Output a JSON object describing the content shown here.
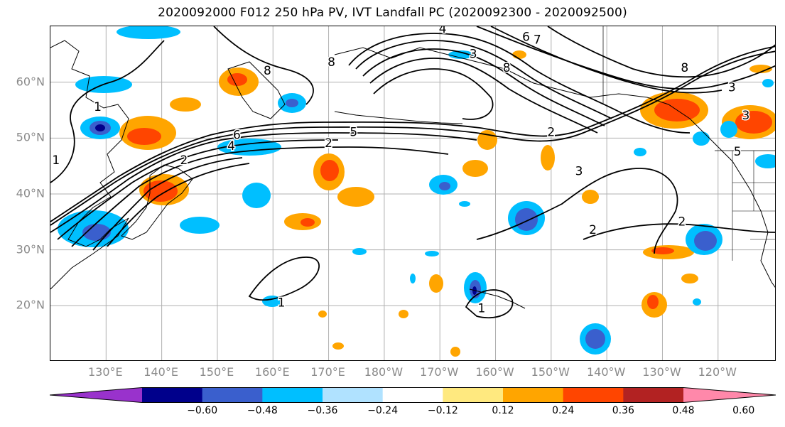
{
  "title": "2020092000 F012 250 hPa PV, IVT Landfall PC (2020092300 - 2020092500)",
  "map": {
    "lat_labels": [
      {
        "text": "60°N",
        "lat": 60
      },
      {
        "text": "50°N",
        "lat": 50
      },
      {
        "text": "40°N",
        "lat": 40
      },
      {
        "text": "30°N",
        "lat": 30
      },
      {
        "text": "20°N",
        "lat": 20
      }
    ],
    "lon_labels": [
      {
        "text": "130°E",
        "lon": 130
      },
      {
        "text": "140°E",
        "lon": 140
      },
      {
        "text": "150°E",
        "lon": 150
      },
      {
        "text": "160°E",
        "lon": 160
      },
      {
        "text": "170°E",
        "lon": 170
      },
      {
        "text": "180°W",
        "lon": 180
      },
      {
        "text": "170°W",
        "lon": 190
      },
      {
        "text": "160°W",
        "lon": 200
      },
      {
        "text": "150°W",
        "lon": 210
      },
      {
        "text": "140°W",
        "lon": 220
      },
      {
        "text": "130°W",
        "lon": 230
      },
      {
        "text": "120°W",
        "lon": 240
      }
    ],
    "extent": {
      "lon_min": 120,
      "lon_max": 250.5,
      "lat_min": 10,
      "lat_max": 70
    },
    "contour_labels": [
      {
        "text": "1",
        "lon": 128.5,
        "lat": 55.5
      },
      {
        "text": "1",
        "lon": 121,
        "lat": 46
      },
      {
        "text": "2",
        "lon": 144,
        "lat": 46
      },
      {
        "text": "4",
        "lon": 152.5,
        "lat": 48.5
      },
      {
        "text": "6",
        "lon": 153.5,
        "lat": 50.5
      },
      {
        "text": "8",
        "lon": 159,
        "lat": 62
      },
      {
        "text": "8",
        "lon": 170.5,
        "lat": 63.5
      },
      {
        "text": "2",
        "lon": 170,
        "lat": 49
      },
      {
        "text": "5",
        "lon": 174.5,
        "lat": 51
      },
      {
        "text": "4",
        "lon": 190.5,
        "lat": 69.5
      },
      {
        "text": "8",
        "lon": 202,
        "lat": 62.5
      },
      {
        "text": "6",
        "lon": 205.5,
        "lat": 68
      },
      {
        "text": "7",
        "lon": 207.5,
        "lat": 67.5
      },
      {
        "text": "3",
        "lon": 196,
        "lat": 65
      },
      {
        "text": "2",
        "lon": 210,
        "lat": 51
      },
      {
        "text": "3",
        "lon": 215,
        "lat": 44
      },
      {
        "text": "2",
        "lon": 217.5,
        "lat": 33.5
      },
      {
        "text": "2",
        "lon": 233.5,
        "lat": 35
      },
      {
        "text": "8",
        "lon": 234,
        "lat": 62.5
      },
      {
        "text": "3",
        "lon": 242.5,
        "lat": 59
      },
      {
        "text": "3",
        "lon": 245,
        "lat": 54
      },
      {
        "text": "5",
        "lon": 243.5,
        "lat": 47.5
      },
      {
        "text": "1",
        "lon": 161.5,
        "lat": 20.5
      },
      {
        "text": "1",
        "lon": 197.5,
        "lat": 19.5
      }
    ]
  },
  "colorbar": {
    "extend": "both",
    "levels": [
      -0.72,
      -0.6,
      -0.48,
      -0.36,
      -0.24,
      -0.12,
      0.12,
      0.24,
      0.36,
      0.48,
      0.6,
      0.72
    ],
    "colors": [
      "#9932cc",
      "#00008b",
      "#3a5fcd",
      "#00bfff",
      "#b0e2ff",
      "#ffffff",
      "#ffe97f",
      "#ffa500",
      "#ff4500",
      "#b22222",
      "#ff88aa"
    ],
    "ticks": [
      "−0.60",
      "−0.48",
      "−0.36",
      "−0.24",
      "−0.12",
      "0.12",
      "0.24",
      "0.36",
      "0.48",
      "0.60"
    ],
    "tick_values": [
      -0.6,
      -0.48,
      -0.36,
      -0.24,
      -0.12,
      0.12,
      0.24,
      0.36,
      0.48,
      0.6
    ]
  }
}
